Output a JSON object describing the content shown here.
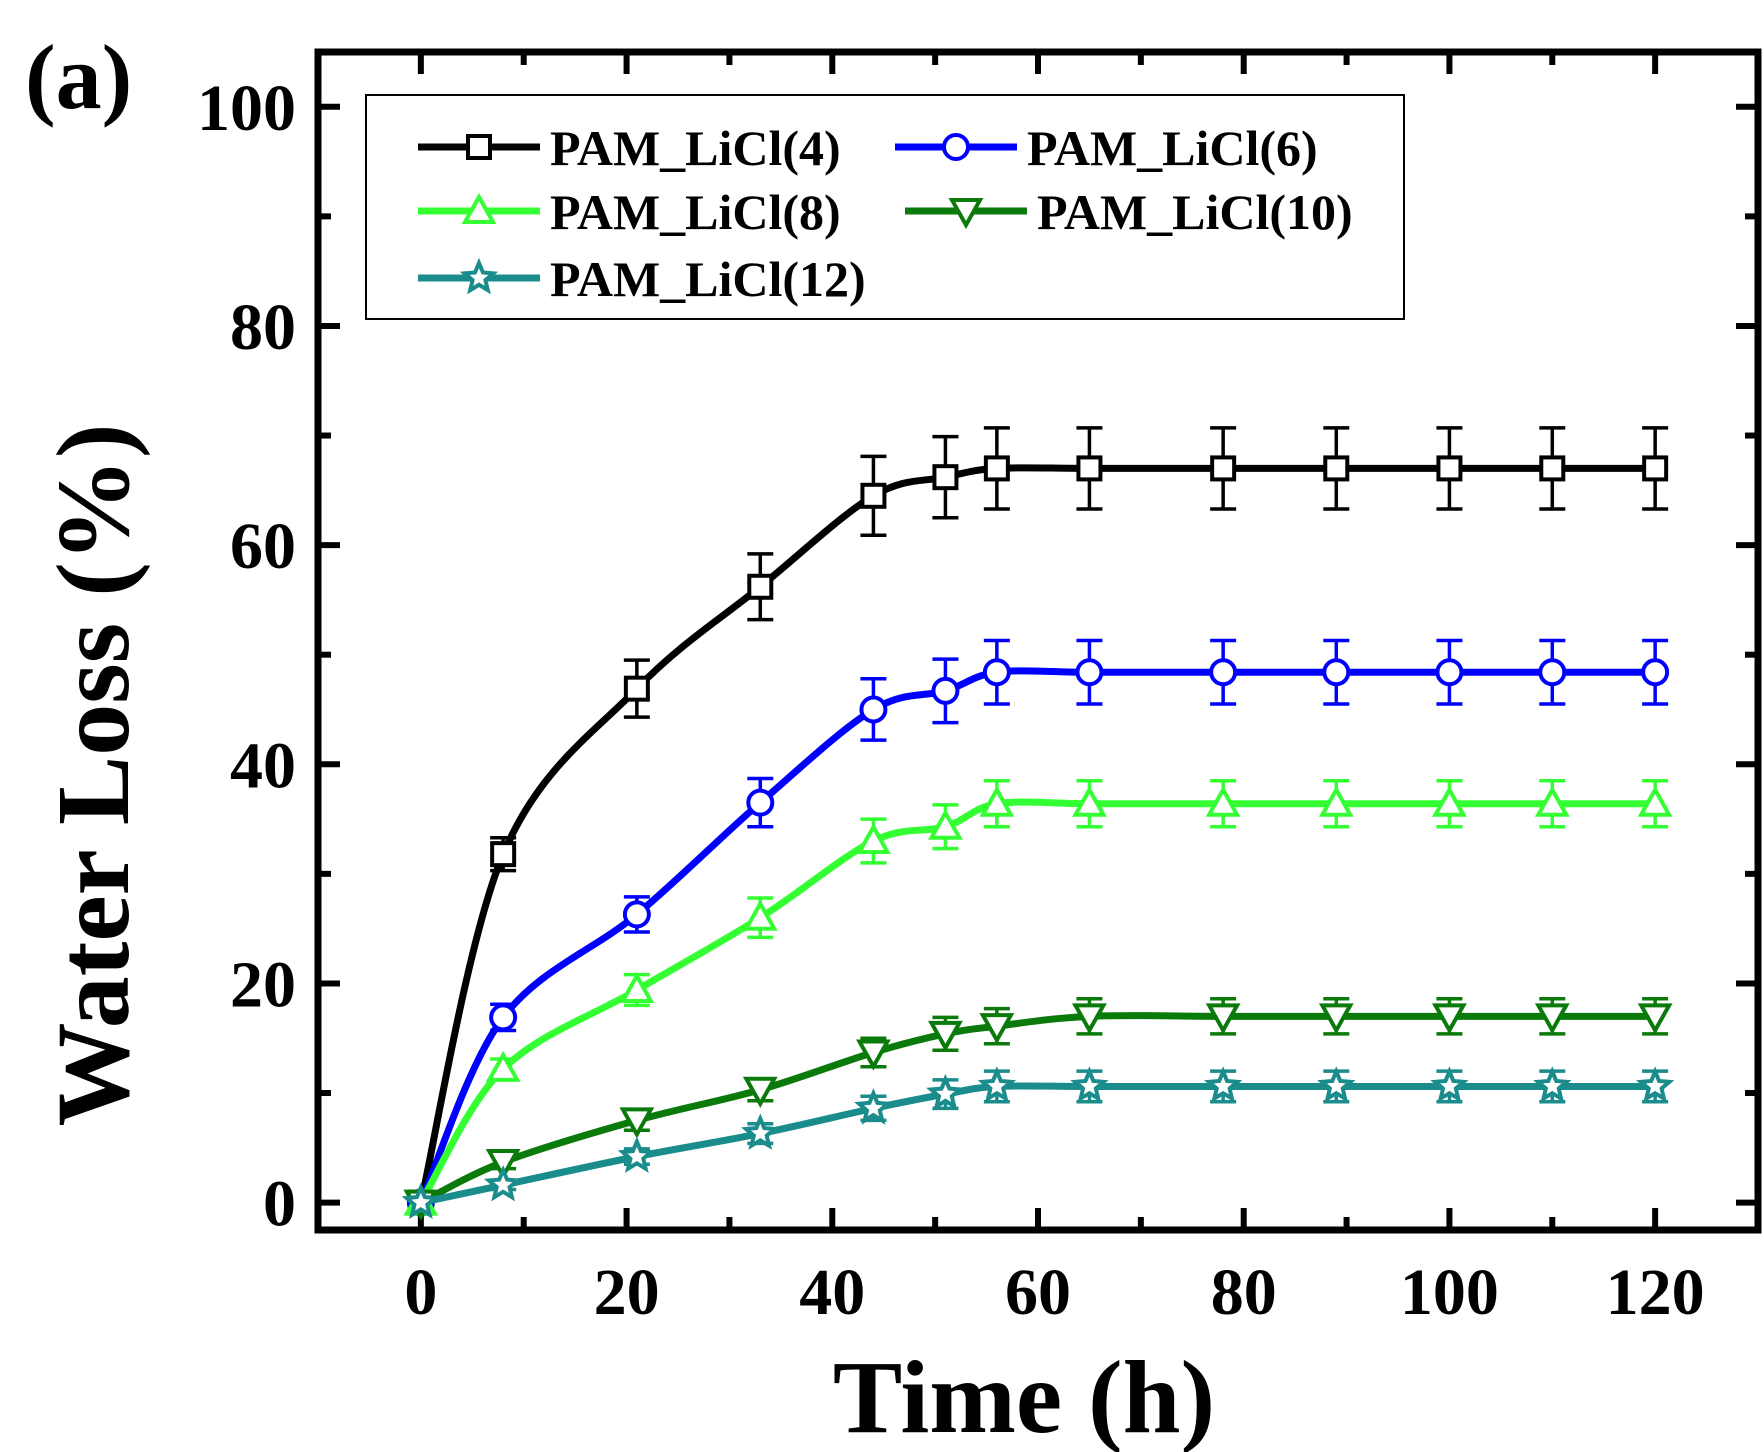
{
  "panel_label": "(a)",
  "chart_data": {
    "type": "line",
    "xlabel": "Time (h)",
    "ylabel": "Water Loss (%)",
    "xlim": [
      -10,
      130
    ],
    "ylim": [
      -2.5,
      105
    ],
    "xticks": [
      0,
      20,
      40,
      60,
      80,
      100,
      120
    ],
    "yticks": [
      0,
      20,
      40,
      60,
      80,
      100
    ],
    "grid": false,
    "legend_position": "top-left",
    "x": [
      0,
      8,
      21,
      33,
      44,
      51,
      56,
      65,
      78,
      89,
      100,
      110,
      120
    ],
    "series": [
      {
        "name": "PAM_LiCl(4)",
        "color": "#000000",
        "marker": "square",
        "values": [
          0,
          31.8,
          46.9,
          56.2,
          64.5,
          66.2,
          67.0,
          67.0,
          67.0,
          67.0,
          67.0,
          67.0,
          67.0
        ],
        "errors": [
          0,
          1.5,
          2.6,
          3.0,
          3.6,
          3.7,
          3.7,
          3.7,
          3.7,
          3.7,
          3.7,
          3.7,
          3.7
        ]
      },
      {
        "name": "PAM_LiCl(6)",
        "color": "#0000ff",
        "marker": "circle",
        "values": [
          0,
          16.9,
          26.3,
          36.5,
          45.0,
          46.7,
          48.4,
          48.4,
          48.4,
          48.4,
          48.4,
          48.4,
          48.4
        ],
        "errors": [
          0,
          1.2,
          1.6,
          2.2,
          2.8,
          2.9,
          2.9,
          2.9,
          2.9,
          2.9,
          2.9,
          2.9,
          2.9
        ]
      },
      {
        "name": "PAM_LiCl(8)",
        "color": "#33ff33",
        "marker": "triangle-up",
        "values": [
          0,
          12.2,
          19.4,
          26.0,
          33.0,
          34.3,
          36.4,
          36.4,
          36.4,
          36.4,
          36.4,
          36.4,
          36.4
        ],
        "errors": [
          0,
          0.9,
          1.4,
          1.8,
          2.0,
          2.0,
          2.1,
          2.1,
          2.1,
          2.1,
          2.1,
          2.1,
          2.1
        ]
      },
      {
        "name": "PAM_LiCl(10)",
        "color": "#0a7a0a",
        "marker": "triangle-down",
        "values": [
          0,
          3.7,
          7.5,
          10.3,
          13.7,
          15.4,
          16.1,
          17.0,
          17.0,
          17.0,
          17.0,
          17.0,
          17.0
        ],
        "errors": [
          0,
          0.6,
          0.9,
          1.0,
          1.3,
          1.5,
          1.6,
          1.6,
          1.6,
          1.6,
          1.6,
          1.6,
          1.6
        ]
      },
      {
        "name": "PAM_LiCl(12)",
        "color": "#1a8c8c",
        "marker": "star",
        "values": [
          0,
          1.6,
          4.2,
          6.3,
          8.6,
          9.9,
          10.6,
          10.6,
          10.6,
          10.6,
          10.6,
          10.6,
          10.6
        ],
        "errors": [
          0,
          0.4,
          0.7,
          0.9,
          1.1,
          1.3,
          1.4,
          1.4,
          1.4,
          1.4,
          1.4,
          1.4,
          1.4
        ]
      }
    ]
  }
}
